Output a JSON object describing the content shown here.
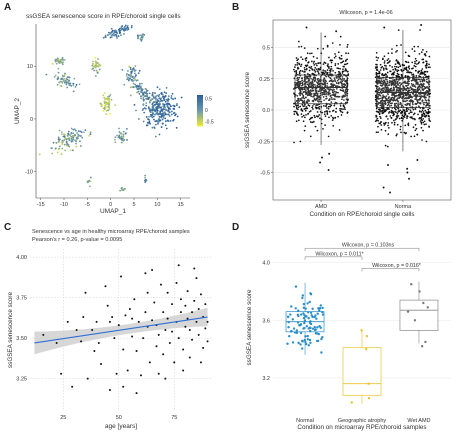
{
  "panels": {
    "A": {
      "letter": "A",
      "chart_data": {
        "type": "scatter",
        "title": "ssGSEA senescence score in RPE/choroid single cells",
        "xlabel": "UMAP_1",
        "ylabel": "UMAP_2",
        "xticks": [
          -15,
          -10,
          -5,
          0,
          5,
          10,
          15
        ],
        "yticks": [
          -10,
          0,
          10
        ],
        "xlim": [
          -16,
          17
        ],
        "ylim": [
          -15,
          18
        ],
        "legend_ticks": [
          0.5,
          0,
          -0.5
        ],
        "legend_range": [
          -0.7,
          0.65
        ],
        "colors": {
          "low": "#f2ee2a",
          "mid": "#6f9aa8",
          "high": "#2a5f9e"
        },
        "clusters": [
          {
            "cx": 1.5,
            "cy": 16.5,
            "rx": 3.2,
            "ry": 0.8,
            "rot": 20,
            "n": 70,
            "score": 0.35
          },
          {
            "cx": 6.5,
            "cy": 15.5,
            "rx": 0.9,
            "ry": 0.6,
            "rot": 0,
            "n": 20,
            "score": 0.1
          },
          {
            "cx": -11,
            "cy": 11,
            "rx": 1.4,
            "ry": 0.7,
            "rot": 10,
            "n": 30,
            "score": -0.1
          },
          {
            "cx": -9.5,
            "cy": 7,
            "rx": 2.6,
            "ry": 1.2,
            "rot": -30,
            "n": 60,
            "score": 0.0
          },
          {
            "cx": -3,
            "cy": 10,
            "rx": 0.9,
            "ry": 1.4,
            "rot": 0,
            "n": 35,
            "score": -0.3
          },
          {
            "cx": -1,
            "cy": 3,
            "rx": 1.2,
            "ry": 2.0,
            "rot": 0,
            "n": 60,
            "score": -0.4
          },
          {
            "cx": 4.5,
            "cy": 8.5,
            "rx": 1.4,
            "ry": 1.6,
            "rot": 0,
            "n": 45,
            "score": 0.15
          },
          {
            "cx": 6.5,
            "cy": 5.5,
            "rx": 3.5,
            "ry": 1.1,
            "rot": -40,
            "n": 90,
            "score": 0.1
          },
          {
            "cx": 10.5,
            "cy": 2.0,
            "rx": 3.6,
            "ry": 3.4,
            "rot": 0,
            "n": 300,
            "score": 0.4
          },
          {
            "cx": -9,
            "cy": -4,
            "rx": 3.6,
            "ry": 1.8,
            "rot": 25,
            "n": 110,
            "score": -0.05
          },
          {
            "cx": 2.5,
            "cy": -3.5,
            "rx": 1.2,
            "ry": 1.4,
            "rot": 0,
            "n": 35,
            "score": 0.0
          },
          {
            "cx": -4.5,
            "cy": -12,
            "rx": 0.6,
            "ry": 0.6,
            "rot": 0,
            "n": 10,
            "score": -0.2
          },
          {
            "cx": 2.5,
            "cy": -13.5,
            "rx": 0.7,
            "ry": 0.5,
            "rot": 0,
            "n": 10,
            "score": -0.2
          },
          {
            "cx": 7.5,
            "cy": -11.5,
            "rx": 0.6,
            "ry": 0.5,
            "rot": 0,
            "n": 8,
            "score": 0.1
          }
        ]
      }
    },
    "B": {
      "letter": "B",
      "chart_data": {
        "type": "box",
        "xlabel": "Condition on RPE/choroid single cells",
        "ylabel": "ssGSEA senescence score",
        "annotation": "Wilcoxon, p = 1.4e-06",
        "categories": [
          "AMD",
          "Normal"
        ],
        "tick_labels": [
          "AMD",
          "Norma"
        ],
        "yticks": [
          0.5,
          0.25,
          0.0,
          -0.25,
          -0.5
        ],
        "ytick_labels": [
          "0.5",
          "0.25",
          "0.0",
          "-0.25",
          "-0.5"
        ],
        "ylim": [
          -0.72,
          0.72
        ],
        "boxes": [
          {
            "q1": 0.05,
            "median": 0.18,
            "q3": 0.28,
            "whisker_low": -0.28,
            "whisker_high": 0.62
          },
          {
            "q1": 0.02,
            "median": 0.14,
            "q3": 0.26,
            "whisker_low": -0.33,
            "whisker_high": 0.64
          }
        ],
        "n_points": [
          900,
          1200
        ],
        "spread": [
          0.13,
          0.14
        ],
        "outliers": [
          [
            -0.48,
            -0.38,
            0.66,
            0.63,
            -0.35,
            -0.42
          ],
          [
            -0.62,
            -0.66,
            -0.55,
            -0.5,
            0.68,
            0.66,
            -0.44,
            -0.4,
            -0.47
          ]
        ]
      }
    },
    "C": {
      "letter": "C",
      "chart_data": {
        "type": "scatter",
        "title": "Senescence vs age in healthy microarray RPE/choroid samples",
        "subtitle": "Pearson's r = 0.26, p-value = 0.0095",
        "xlabel": "age [years]",
        "ylabel": "ssGSEA senescence score",
        "xticks": [
          25,
          50,
          75
        ],
        "yticks": [
          3.25,
          3.5,
          3.75,
          4.0
        ],
        "ytick_labels": [
          "3.25",
          "3.50",
          "3.75",
          "4.00"
        ],
        "xlim": [
          10,
          92
        ],
        "ylim": [
          3.05,
          4.05
        ],
        "fit": {
          "x0": 12,
          "y0": 3.47,
          "x1": 90,
          "y1": 3.63
        },
        "ci_half_width_ends": 0.07,
        "ci_half_width_mid": 0.03,
        "points": [
          [
            16,
            3.52
          ],
          [
            22,
            3.47
          ],
          [
            24,
            3.28
          ],
          [
            27,
            3.6
          ],
          [
            29,
            3.2
          ],
          [
            31,
            3.55
          ],
          [
            33,
            3.48
          ],
          [
            35,
            3.78
          ],
          [
            36,
            3.25
          ],
          [
            38,
            3.55
          ],
          [
            40,
            3.6
          ],
          [
            41,
            3.47
          ],
          [
            42,
            3.34
          ],
          [
            44,
            3.82
          ],
          [
            45,
            3.7
          ],
          [
            46,
            3.18
          ],
          [
            47,
            3.63
          ],
          [
            48,
            3.5
          ],
          [
            49,
            3.28
          ],
          [
            50,
            3.58
          ],
          [
            51,
            3.88
          ],
          [
            52,
            3.43
          ],
          [
            53,
            3.64
          ],
          [
            54,
            3.3
          ],
          [
            55,
            3.68
          ],
          [
            56,
            3.51
          ],
          [
            57,
            3.74
          ],
          [
            58,
            3.42
          ],
          [
            59,
            3.6
          ],
          [
            60,
            3.27
          ],
          [
            61,
            3.5
          ],
          [
            62,
            3.66
          ],
          [
            63,
            3.57
          ],
          [
            64,
            3.35
          ],
          [
            65,
            3.92
          ],
          [
            65,
            3.61
          ],
          [
            66,
            3.72
          ],
          [
            67,
            3.45
          ],
          [
            67,
            3.58
          ],
          [
            68,
            3.28
          ],
          [
            69,
            3.83
          ],
          [
            70,
            3.4
          ],
          [
            70,
            3.66
          ],
          [
            71,
            3.55
          ],
          [
            72,
            3.78
          ],
          [
            72,
            3.62
          ],
          [
            73,
            3.47
          ],
          [
            74,
            3.71
          ],
          [
            74,
            3.54
          ],
          [
            75,
            3.35
          ],
          [
            76,
            3.84
          ],
          [
            76,
            3.6
          ],
          [
            77,
            3.5
          ],
          [
            78,
            3.74
          ],
          [
            78,
            3.66
          ],
          [
            79,
            3.43
          ],
          [
            80,
            3.57
          ],
          [
            80,
            3.7
          ],
          [
            81,
            3.62
          ],
          [
            81,
            3.79
          ],
          [
            82,
            3.38
          ],
          [
            82,
            3.55
          ],
          [
            83,
            3.66
          ],
          [
            83,
            3.49
          ],
          [
            84,
            3.73
          ],
          [
            85,
            3.6
          ],
          [
            85,
            3.87
          ],
          [
            86,
            3.52
          ],
          [
            86,
            3.68
          ],
          [
            87,
            3.77
          ],
          [
            88,
            3.44
          ],
          [
            88,
            3.63
          ],
          [
            89,
            3.56
          ],
          [
            89,
            3.71
          ],
          [
            90,
            3.6
          ],
          [
            90,
            3.48
          ],
          [
            84,
            3.93
          ],
          [
            77,
            3.95
          ],
          [
            62,
            3.9
          ],
          [
            58,
            3.16
          ],
          [
            52,
            3.2
          ],
          [
            46,
            3.6
          ],
          [
            39,
            3.42
          ],
          [
            34,
            3.63
          ],
          [
            71,
            3.25
          ],
          [
            79,
            3.3
          ],
          [
            87,
            3.35
          ],
          [
            68,
            3.52
          ],
          [
            63,
            3.78
          ],
          [
            56,
            3.62
          ]
        ]
      }
    },
    "D": {
      "letter": "D",
      "chart_data": {
        "type": "box",
        "xlabel": "Condition on microarray RPE/choroid samples",
        "ylabel": "ssGSEA senescence score",
        "categories": [
          "Normal",
          "Geographic atrophy",
          "Wet AMD"
        ],
        "yticks": [
          3.2,
          3.6,
          4.0
        ],
        "ytick_labels": [
          "3.2",
          "3.6",
          "4.0"
        ],
        "ylim": [
          2.95,
          4.15
        ],
        "comparisons": [
          {
            "label": "Wilcoxon, p = 0.103ns",
            "from": 0,
            "to": 2,
            "y": 4.1
          },
          {
            "label": "Wilcoxon, p = 0.011*",
            "from": 0,
            "to": 1,
            "y": 4.04
          },
          {
            "label": "Wilcoxon, p = 0.016*",
            "from": 1,
            "to": 2,
            "y": 3.96
          }
        ],
        "boxes": [
          {
            "q1": 3.52,
            "median": 3.59,
            "q3": 3.66,
            "whisker_low": 3.36,
            "whisker_high": 3.86,
            "color": "#2a8fc9"
          },
          {
            "q1": 3.08,
            "median": 3.16,
            "q3": 3.41,
            "whisker_low": 3.02,
            "whisker_high": 3.53,
            "color": "#e8c22a"
          },
          {
            "q1": 3.53,
            "median": 3.67,
            "q3": 3.74,
            "whisker_low": 3.44,
            "whisker_high": 3.87,
            "color": "#8a8a8a"
          }
        ],
        "n_points": [
          100,
          6,
          8
        ],
        "points_gray": [
          3.85,
          3.8,
          3.72,
          3.69,
          3.66,
          3.6,
          3.45,
          3.42
        ],
        "points_yellow": [
          3.53,
          3.49,
          3.4,
          3.16,
          3.06,
          3.03
        ]
      }
    }
  }
}
